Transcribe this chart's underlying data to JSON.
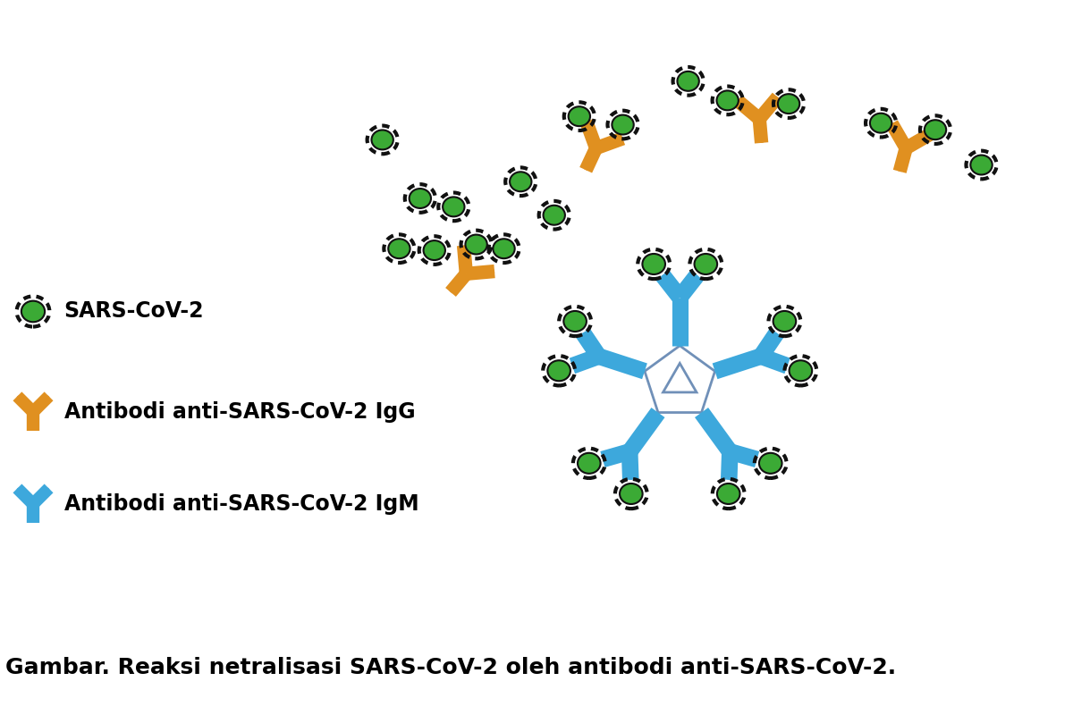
{
  "bg_color": "#ffffff",
  "virus_color": "#3BAA35",
  "virus_border_color": "#111111",
  "igg_color": "#E09020",
  "igm_color": "#3DA8DC",
  "igm_center_color": "#7090B8",
  "label_sars": "SARS-CoV-2",
  "label_igg": "Antibodi anti-SARS-CoV-2 IgG",
  "label_igm": "Antibodi anti-SARS-CoV-2 IgM",
  "caption": "Gambar. Reaksi netralisasi SARS-CoV-2 oleh antibodi anti-SARS-CoV-2.",
  "label_fontsize": 17,
  "caption_fontsize": 18,
  "igg_lw": 7,
  "igm_lw": 8
}
